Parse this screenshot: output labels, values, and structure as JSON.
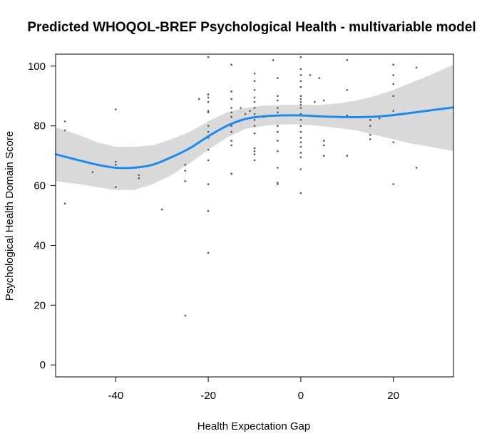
{
  "chart_data": {
    "type": "line",
    "title": "Predicted WHOQOL-BREF Psychological Health - multivariable model",
    "xlabel": "Health Expectation Gap",
    "ylabel": "Psychological Health Domain Score",
    "xlim": [
      -53,
      33
    ],
    "ylim": [
      -4,
      104
    ],
    "x_ticks": [
      -40,
      -20,
      0,
      20
    ],
    "y_ticks": [
      0,
      20,
      40,
      60,
      80,
      100
    ],
    "colors": {
      "line": "#1a8cf0",
      "band": "#d9d9d9",
      "points": "#555555"
    },
    "series": [
      {
        "type": "line",
        "x": [
          -53,
          -48,
          -44,
          -40,
          -36,
          -32,
          -28,
          -24,
          -20,
          -16,
          -12,
          -8,
          -4,
          0,
          4,
          8,
          12,
          16,
          20,
          24,
          28,
          33
        ],
        "y": [
          70.5,
          68.5,
          67,
          66,
          66,
          67,
          69.5,
          72.5,
          76.5,
          80,
          82.3,
          83.2,
          83.5,
          83.5,
          83.2,
          83,
          82.9,
          83.1,
          83.6,
          84.4,
          85.2,
          86.2
        ],
        "lower": [
          61.5,
          60.5,
          59.5,
          58.5,
          58.5,
          60.5,
          63.5,
          67.5,
          72,
          76,
          79,
          80,
          80.5,
          80.5,
          80,
          79.3,
          78.5,
          77,
          75.5,
          74,
          73,
          71.5
        ],
        "upper": [
          79.5,
          77,
          74.5,
          73,
          73,
          73.5,
          75.5,
          78,
          81.5,
          84.5,
          86,
          86.8,
          87,
          87,
          87,
          87.5,
          88.5,
          90,
          92,
          94.5,
          97,
          100.5
        ]
      },
      {
        "type": "scatter",
        "points": [
          [
            -51,
            81.5
          ],
          [
            -51,
            78.5
          ],
          [
            -51,
            54
          ],
          [
            -45,
            64.5
          ],
          [
            -40,
            85.5
          ],
          [
            -40,
            68
          ],
          [
            -40,
            67
          ],
          [
            -40,
            59.5
          ],
          [
            -35,
            63.5
          ],
          [
            -35,
            62.5
          ],
          [
            -30,
            52
          ],
          [
            -25,
            67
          ],
          [
            -25,
            65
          ],
          [
            -25,
            61.5
          ],
          [
            -25,
            16.5
          ],
          [
            -22,
            89
          ],
          [
            -20,
            90.5
          ],
          [
            -20,
            89.5
          ],
          [
            -20,
            88
          ],
          [
            -20,
            85
          ],
          [
            -20,
            84.5
          ],
          [
            -20,
            80
          ],
          [
            -20,
            78
          ],
          [
            -20,
            76
          ],
          [
            -20,
            72
          ],
          [
            -20,
            68.5
          ],
          [
            -20,
            60.5
          ],
          [
            -20,
            51.5
          ],
          [
            -20,
            37.5
          ],
          [
            -20,
            103
          ],
          [
            -15,
            100.5
          ],
          [
            -15,
            91.5
          ],
          [
            -15,
            89
          ],
          [
            -15,
            86
          ],
          [
            -15,
            84.5
          ],
          [
            -15,
            83
          ],
          [
            -15,
            80
          ],
          [
            -15,
            78
          ],
          [
            -15,
            75
          ],
          [
            -15,
            73.5
          ],
          [
            -15,
            64
          ],
          [
            -13,
            86
          ],
          [
            -12,
            84
          ],
          [
            -11,
            85
          ],
          [
            -10,
            97.5
          ],
          [
            -10,
            95
          ],
          [
            -10,
            92
          ],
          [
            -10,
            89.5
          ],
          [
            -10,
            88
          ],
          [
            -10,
            86
          ],
          [
            -10,
            84
          ],
          [
            -10,
            82
          ],
          [
            -10,
            80
          ],
          [
            -10,
            77.5
          ],
          [
            -10,
            72.5
          ],
          [
            -10,
            71.5
          ],
          [
            -10,
            70.5
          ],
          [
            -10,
            68.5
          ],
          [
            -8,
            83
          ],
          [
            -6,
            102
          ],
          [
            -5,
            96
          ],
          [
            -5,
            90
          ],
          [
            -5,
            88.5
          ],
          [
            -5,
            86
          ],
          [
            -5,
            84.5
          ],
          [
            -5,
            80
          ],
          [
            -5,
            78
          ],
          [
            -5,
            75
          ],
          [
            -5,
            71.5
          ],
          [
            -5,
            66
          ],
          [
            -5,
            61
          ],
          [
            -5,
            60.5
          ],
          [
            0,
            99
          ],
          [
            0,
            97
          ],
          [
            0,
            95
          ],
          [
            0,
            93
          ],
          [
            0,
            90
          ],
          [
            0,
            89
          ],
          [
            0,
            88
          ],
          [
            0,
            87
          ],
          [
            0,
            86
          ],
          [
            0,
            84
          ],
          [
            0,
            82
          ],
          [
            0,
            80
          ],
          [
            0,
            78
          ],
          [
            0,
            76
          ],
          [
            0,
            74.5
          ],
          [
            0,
            73
          ],
          [
            0,
            71
          ],
          [
            0,
            69.5
          ],
          [
            0,
            65.5
          ],
          [
            0,
            57.5
          ],
          [
            0,
            103
          ],
          [
            2,
            97
          ],
          [
            3,
            88
          ],
          [
            4,
            96
          ],
          [
            5,
            88.5
          ],
          [
            5,
            75
          ],
          [
            5,
            73.5
          ],
          [
            5,
            70
          ],
          [
            10,
            102
          ],
          [
            10,
            92
          ],
          [
            10,
            83.5
          ],
          [
            10,
            70
          ],
          [
            15,
            82
          ],
          [
            15,
            80
          ],
          [
            15,
            77
          ],
          [
            15,
            75.5
          ],
          [
            17,
            82.5
          ],
          [
            20,
            100.5
          ],
          [
            20,
            97
          ],
          [
            20,
            94
          ],
          [
            20,
            90
          ],
          [
            20,
            85
          ],
          [
            20,
            74.5
          ],
          [
            20,
            60.5
          ],
          [
            25,
            99.5
          ],
          [
            25,
            66
          ]
        ]
      }
    ],
    "legend": "none",
    "grid": false
  }
}
